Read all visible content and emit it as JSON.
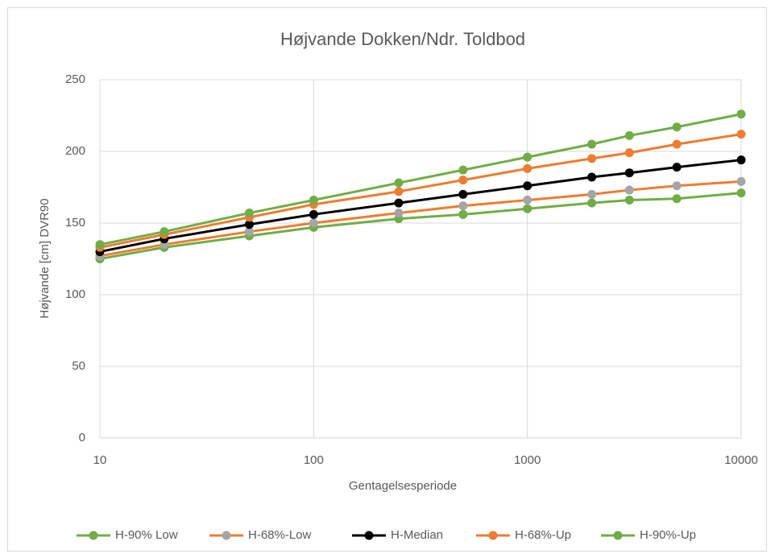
{
  "chart_data": {
    "type": "line",
    "title": "Højvande Dokken/Ndr. Toldbod",
    "x_label": "Gentagelsesperiode",
    "y_label": "Højvande [cm] DVR90",
    "x": [
      10,
      20,
      50,
      100,
      250,
      500,
      1000,
      2000,
      3000,
      5000,
      10000
    ],
    "xscale": "log",
    "xlim": [
      10,
      10000
    ],
    "xticks": [
      10,
      100,
      1000,
      10000
    ],
    "ylim": [
      0,
      250
    ],
    "yticks": [
      0,
      50,
      100,
      150,
      200,
      250
    ],
    "grid": true,
    "legend": "bottom",
    "series": [
      {
        "name": "H-90% Low",
        "color": "#70ad47",
        "marker_color": "#70ad47",
        "values": [
          125,
          133,
          141,
          147,
          153,
          156,
          160,
          164,
          166,
          167,
          171
        ]
      },
      {
        "name": "H-68%-Low",
        "color": "#ed7d31",
        "marker_color": "#a5a5a5",
        "values": [
          127,
          135,
          144,
          150,
          157,
          162,
          166,
          170,
          173,
          176,
          179
        ]
      },
      {
        "name": "H-Median",
        "color": "#000000",
        "marker_color": "#000000",
        "values": [
          130,
          139,
          149,
          156,
          164,
          170,
          176,
          182,
          185,
          189,
          194
        ]
      },
      {
        "name": "H-68%-Up",
        "color": "#ed7d31",
        "marker_color": "#ed7d31",
        "values": [
          133,
          142,
          154,
          163,
          172,
          180,
          188,
          195,
          199,
          205,
          212
        ]
      },
      {
        "name": "H-90%-Up",
        "color": "#70ad47",
        "marker_color": "#70ad47",
        "values": [
          135,
          144,
          157,
          166,
          178,
          187,
          196,
          205,
          211,
          217,
          226
        ]
      }
    ]
  }
}
